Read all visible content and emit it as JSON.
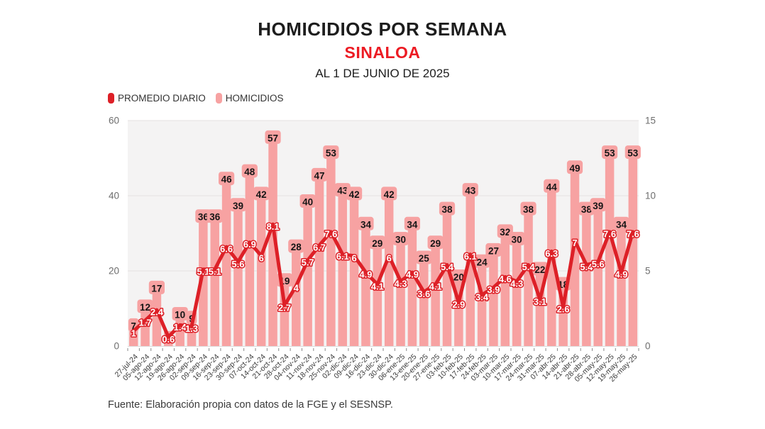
{
  "header": {
    "title": "HOMICIDIOS POR SEMANA",
    "subtitle": "SINALOA",
    "subtitle_color": "#ec1b23",
    "date_line": "AL 1 DE JUNIO DE 2025"
  },
  "legend": {
    "items": [
      {
        "label": "PROMEDIO DIARIO",
        "color": "#dd2027"
      },
      {
        "label": "HOMICIDIOS",
        "color": "#f7a2a2"
      }
    ]
  },
  "footer": {
    "source": "Fuente: Elaboración propia con datos de la FGE y el SESNSP."
  },
  "chart_data": {
    "type": "bar+line",
    "title": "HOMICIDIOS POR SEMANA",
    "categories": [
      "27-jul-24",
      "05-ago-24",
      "12-ago-24",
      "19-ago-24",
      "26-ago-24",
      "02-sep-24",
      "09-sep-24",
      "16-sep-24",
      "23-sep-24",
      "30-sep-24",
      "07-oct-24",
      "14-oct-24",
      "21-oct-24",
      "28-oct-24",
      "04-nov-24",
      "11-nov-24",
      "18-nov-24",
      "25-nov-24",
      "02-dic-24",
      "09-dic-24",
      "16-dic-24",
      "23-dic-24",
      "30-dic-24",
      "06-ene-25",
      "13-ene-25",
      "20-ene-25",
      "27-ene-25",
      "03-feb-25",
      "10-feb-25",
      "17-feb-25",
      "24-feb-25",
      "03-mar-25",
      "10-mar-25",
      "17-mar-25",
      "24-mar-25",
      "31-mar-25",
      "07-abr-25",
      "14-abr-25",
      "21-abr-25",
      "28-abr-25",
      "05-may-25",
      "12-may-25",
      "19-may-25",
      "26-may-25"
    ],
    "series": [
      {
        "name": "HOMICIDIOS",
        "type": "bar",
        "axis": "left",
        "color": "#f7a2a2",
        "values": [
          7,
          12,
          17,
          4,
          10,
          9,
          36,
          36,
          46,
          39,
          48,
          42,
          57,
          19,
          28,
          40,
          47,
          53,
          43,
          42,
          34,
          29,
          42,
          30,
          34,
          25,
          29,
          38,
          20,
          43,
          24,
          27,
          32,
          30,
          38,
          22,
          44,
          18,
          49,
          38,
          39,
          53,
          34,
          53
        ]
      },
      {
        "name": "PROMEDIO DIARIO",
        "type": "line",
        "axis": "right",
        "color": "#dd2027",
        "values": [
          1,
          1.7,
          2.4,
          0.6,
          1.4,
          1.3,
          5.1,
          5.1,
          6.6,
          5.6,
          6.9,
          6,
          8.1,
          2.7,
          4,
          5.7,
          6.7,
          7.6,
          6.1,
          6,
          4.9,
          4.1,
          6,
          4.3,
          4.9,
          3.6,
          4.1,
          5.4,
          2.9,
          6.1,
          3.4,
          3.9,
          4.6,
          4.3,
          5.4,
          3.1,
          6.3,
          2.6,
          7,
          5.4,
          5.6,
          7.6,
          4.9,
          7.6
        ]
      }
    ],
    "hidden_bar_label_indices": [
      3
    ],
    "left_axis": {
      "range": [
        0,
        60
      ],
      "tick_values": [
        0,
        20,
        40,
        60
      ],
      "tick_labels": [
        "0",
        "20",
        "40",
        "60"
      ]
    },
    "right_axis": {
      "range": [
        0,
        15
      ],
      "tick_values": [
        0,
        5,
        10,
        15
      ],
      "tick_labels": [
        "0",
        "5",
        "10",
        "15"
      ]
    },
    "grid": true,
    "plot_bg": "#f4f3f3",
    "gridline_color": "#e5e2e2",
    "bar_label_color": "#161616",
    "line_label_color": "#ffffff",
    "axis_label_color": "#6e6e6e",
    "x_label_color": "#3b3b3b",
    "tick_color": "#8a8a8a"
  }
}
